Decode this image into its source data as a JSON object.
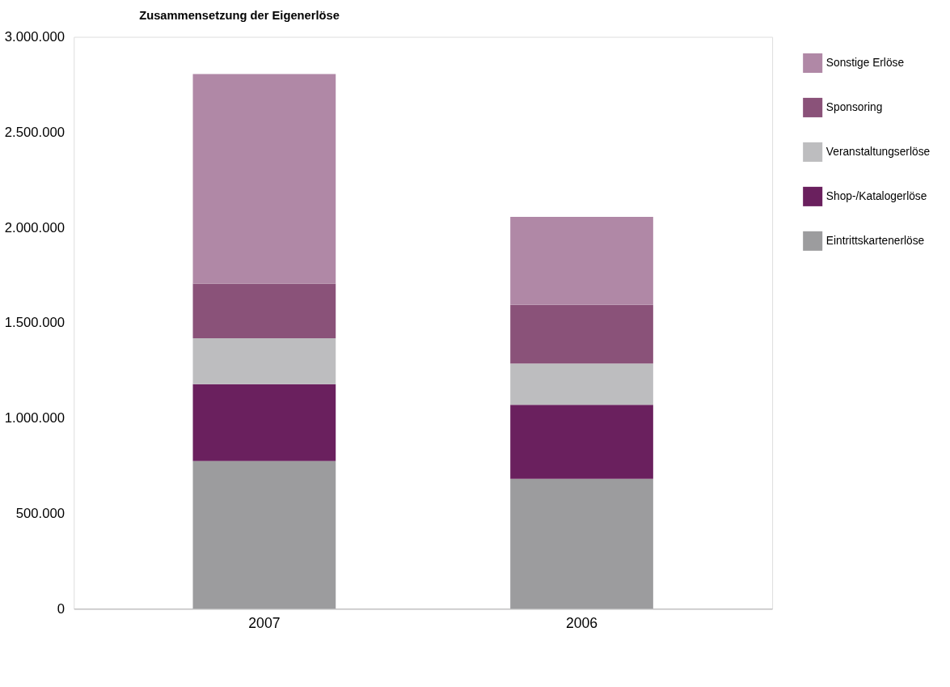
{
  "chart_data": {
    "type": "bar",
    "title": "Zusammensetzung der Eigenerlöse",
    "categories": [
      "2007",
      "2006"
    ],
    "stacked": true,
    "legend": "top right",
    "grid": false,
    "series": [
      {
        "name": "Eintrittskartenerlöse",
        "color": "#9c9c9e",
        "values": [
          775000,
          682000
        ]
      },
      {
        "name": "Shop-/Katalogerlöse",
        "color": "#6a205e",
        "values": [
          403000,
          388000
        ]
      },
      {
        "name": "Veranstaltungserlöse",
        "color": "#bdbdbf",
        "values": [
          241000,
          216000
        ]
      },
      {
        "name": "Sponsoring",
        "color": "#8a5279",
        "values": [
          287000,
          308000
        ]
      },
      {
        "name": "Sonstige Erlöse",
        "color": "#b088a6",
        "values": [
          1099000,
          462000
        ]
      }
    ],
    "ylim": [
      0,
      3000000
    ],
    "yticks": [
      0,
      {
        "value": 500000,
        "label": "500.000"
      },
      {
        "value": 1000000,
        "label": "1.000.000"
      },
      {
        "value": 1500000,
        "label": "1.500.000"
      },
      {
        "value": 2000000,
        "label": "2.000.000"
      },
      {
        "value": 2500000,
        "label": "2.500.000"
      },
      {
        "value": 3000000,
        "label": "3.000.000"
      }
    ]
  }
}
